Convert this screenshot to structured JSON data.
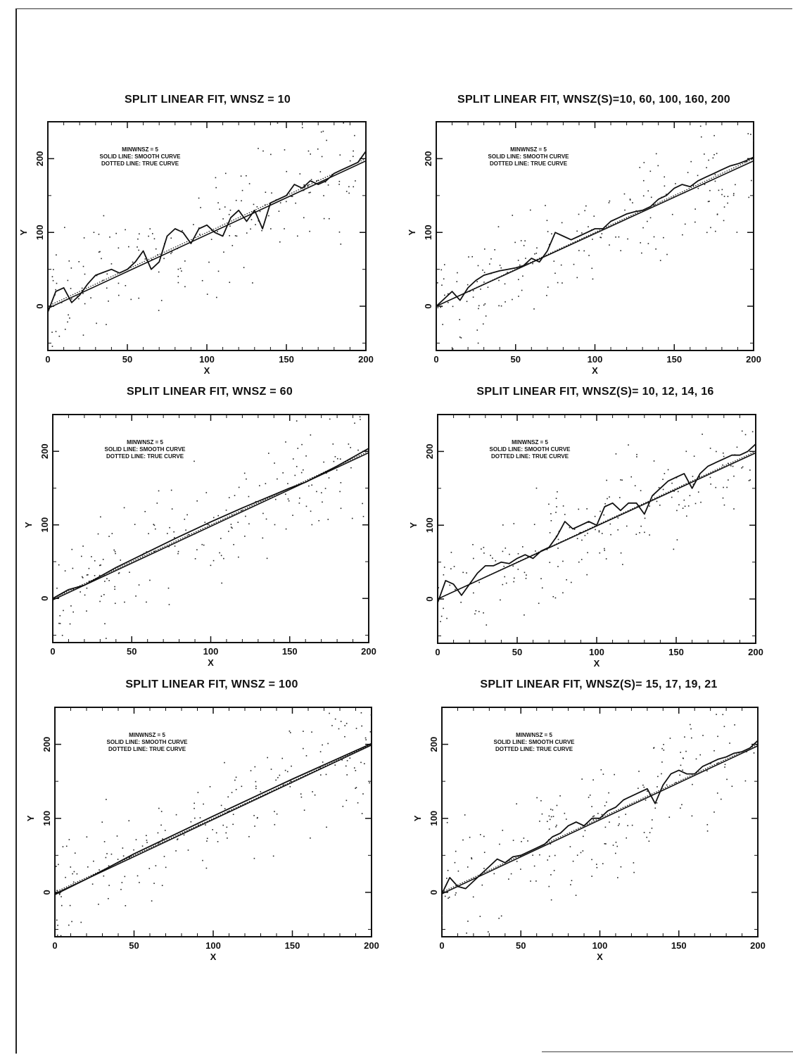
{
  "annotation": {
    "minwnsz": "MINWNSZ = 5",
    "solid": "SOLID LINE: SMOOTH CURVE",
    "dotted": "DOTTED LINE: TRUE CURVE"
  },
  "chart_data": [
    {
      "type": "line",
      "title": "SPLIT LINEAR FIT, WNSZ = 10",
      "xlabel": "X",
      "ylabel": "Y",
      "xlim": [
        0,
        200
      ],
      "ylim": [
        -60,
        250
      ],
      "xticks": [
        0,
        50,
        100,
        150,
        200
      ],
      "yticks": [
        0,
        100,
        200
      ],
      "series": [
        {
          "style": "solid",
          "x": [
            0,
            5,
            10,
            15,
            20,
            25,
            30,
            35,
            40,
            45,
            50,
            55,
            60,
            65,
            70,
            75,
            80,
            85,
            90,
            95,
            100,
            105,
            110,
            115,
            120,
            125,
            130,
            135,
            140,
            145,
            150,
            155,
            160,
            165,
            170,
            175,
            180,
            185,
            190,
            195,
            200
          ],
          "y": [
            -8,
            20,
            25,
            5,
            15,
            30,
            42,
            46,
            50,
            45,
            50,
            60,
            75,
            50,
            60,
            95,
            105,
            100,
            85,
            105,
            110,
            100,
            95,
            120,
            130,
            115,
            130,
            105,
            140,
            145,
            150,
            165,
            160,
            170,
            165,
            170,
            180,
            185,
            190,
            195,
            210
          ]
        },
        {
          "style": "dotted",
          "x": [
            0,
            200
          ],
          "y": [
            0,
            200
          ]
        },
        {
          "style": "fit",
          "x": [
            0,
            200
          ],
          "y": [
            -3,
            197
          ]
        }
      ]
    },
    {
      "type": "line",
      "title": "SPLIT LINEAR FIT, WNSZ(S)=10, 60, 100, 160, 200",
      "xlabel": "X",
      "ylabel": "Y",
      "xlim": [
        0,
        200
      ],
      "ylim": [
        -60,
        250
      ],
      "xticks": [
        0,
        50,
        100,
        150,
        200
      ],
      "yticks": [
        0,
        100,
        200
      ],
      "series": [
        {
          "style": "solid",
          "x": [
            0,
            5,
            10,
            15,
            20,
            25,
            30,
            35,
            40,
            45,
            50,
            55,
            60,
            65,
            70,
            75,
            80,
            85,
            90,
            95,
            100,
            105,
            110,
            115,
            120,
            125,
            130,
            135,
            140,
            145,
            150,
            155,
            160,
            165,
            170,
            175,
            180,
            185,
            190,
            195,
            200
          ],
          "y": [
            0,
            10,
            20,
            8,
            25,
            35,
            42,
            45,
            48,
            50,
            52,
            55,
            65,
            60,
            75,
            100,
            95,
            90,
            95,
            100,
            105,
            105,
            115,
            120,
            125,
            128,
            130,
            135,
            145,
            150,
            160,
            165,
            162,
            170,
            175,
            180,
            185,
            190,
            193,
            197,
            202
          ]
        },
        {
          "style": "dotted",
          "x": [
            0,
            200
          ],
          "y": [
            0,
            200
          ]
        },
        {
          "style": "fit",
          "x": [
            0,
            200
          ],
          "y": [
            0,
            197
          ]
        }
      ]
    },
    {
      "type": "line",
      "title": "SPLIT LINEAR FIT, WNSZ = 60",
      "xlabel": "X",
      "ylabel": "Y",
      "xlim": [
        0,
        200
      ],
      "ylim": [
        -60,
        250
      ],
      "xticks": [
        0,
        50,
        100,
        150,
        200
      ],
      "yticks": [
        0,
        100,
        200
      ],
      "series": [
        {
          "style": "solid",
          "x": [
            0,
            10,
            20,
            40,
            60,
            80,
            100,
            120,
            140,
            150,
            160,
            180,
            200
          ],
          "y": [
            0,
            12,
            18,
            42,
            63,
            84,
            104,
            123,
            141,
            150,
            158,
            180,
            204
          ]
        },
        {
          "style": "dotted",
          "x": [
            0,
            200
          ],
          "y": [
            0,
            200
          ]
        },
        {
          "style": "fit",
          "x": [
            0,
            200
          ],
          "y": [
            -2,
            198
          ]
        }
      ]
    },
    {
      "type": "line",
      "title": "SPLIT LINEAR FIT, WNSZ(S)= 10, 12, 14, 16",
      "xlabel": "X",
      "ylabel": "Y",
      "xlim": [
        0,
        200
      ],
      "ylim": [
        -60,
        250
      ],
      "xticks": [
        0,
        50,
        100,
        150,
        200
      ],
      "yticks": [
        0,
        100,
        200
      ],
      "series": [
        {
          "style": "solid",
          "x": [
            0,
            5,
            10,
            15,
            20,
            25,
            30,
            35,
            40,
            45,
            50,
            55,
            60,
            65,
            70,
            75,
            80,
            85,
            90,
            95,
            100,
            105,
            110,
            115,
            120,
            125,
            130,
            135,
            140,
            145,
            150,
            155,
            160,
            165,
            170,
            175,
            180,
            185,
            190,
            195,
            200
          ],
          "y": [
            -5,
            25,
            20,
            5,
            20,
            35,
            45,
            45,
            50,
            48,
            55,
            60,
            55,
            65,
            70,
            85,
            105,
            95,
            100,
            105,
            100,
            125,
            130,
            120,
            130,
            130,
            115,
            140,
            150,
            160,
            165,
            170,
            150,
            170,
            180,
            185,
            190,
            195,
            195,
            200,
            210
          ]
        },
        {
          "style": "dotted",
          "x": [
            0,
            200
          ],
          "y": [
            0,
            200
          ]
        },
        {
          "style": "fit",
          "x": [
            0,
            200
          ],
          "y": [
            0,
            198
          ]
        }
      ]
    },
    {
      "type": "line",
      "title": "SPLIT LINEAR FIT, WNSZ = 100",
      "xlabel": "X",
      "ylabel": "Y",
      "xlim": [
        0,
        200
      ],
      "ylim": [
        -60,
        250
      ],
      "xticks": [
        0,
        50,
        100,
        150,
        200
      ],
      "yticks": [
        0,
        100,
        200
      ],
      "series": [
        {
          "style": "solid",
          "x": [
            0,
            20,
            50,
            100,
            150,
            200
          ],
          "y": [
            -3,
            18,
            52,
            103,
            153,
            201
          ]
        },
        {
          "style": "dotted",
          "x": [
            0,
            200
          ],
          "y": [
            0,
            200
          ]
        },
        {
          "style": "fit",
          "x": [
            0,
            200
          ],
          "y": [
            -2,
            199
          ]
        }
      ]
    },
    {
      "type": "line",
      "title": "SPLIT LINEAR FIT, WNSZ(S)= 15, 17, 19, 21",
      "xlabel": "X",
      "ylabel": "Y",
      "xlim": [
        0,
        200
      ],
      "ylim": [
        -60,
        250
      ],
      "xticks": [
        0,
        50,
        100,
        150,
        200
      ],
      "yticks": [
        0,
        100,
        200
      ],
      "series": [
        {
          "style": "solid",
          "x": [
            0,
            5,
            10,
            15,
            20,
            25,
            30,
            35,
            40,
            45,
            50,
            55,
            60,
            65,
            70,
            75,
            80,
            85,
            90,
            95,
            100,
            105,
            110,
            115,
            120,
            125,
            130,
            135,
            140,
            145,
            150,
            155,
            160,
            165,
            170,
            175,
            180,
            185,
            190,
            195,
            200
          ],
          "y": [
            -2,
            20,
            8,
            5,
            15,
            25,
            35,
            45,
            40,
            48,
            50,
            55,
            60,
            65,
            75,
            80,
            90,
            95,
            90,
            100,
            100,
            110,
            115,
            125,
            130,
            135,
            140,
            120,
            145,
            160,
            165,
            160,
            160,
            170,
            175,
            180,
            183,
            188,
            190,
            195,
            205
          ]
        },
        {
          "style": "dotted",
          "x": [
            0,
            200
          ],
          "y": [
            0,
            200
          ]
        },
        {
          "style": "fit",
          "x": [
            0,
            200
          ],
          "y": [
            -2,
            198
          ]
        }
      ]
    }
  ]
}
